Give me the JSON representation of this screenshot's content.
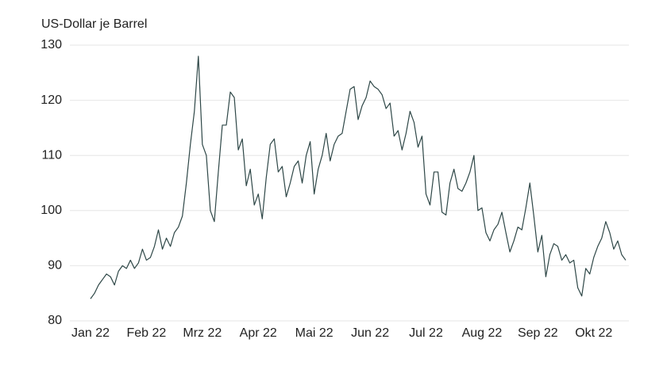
{
  "chart_data": {
    "type": "line",
    "title": "US-Dollar je Barrel",
    "categories": [
      "Jan 22",
      null,
      null,
      null,
      null,
      null,
      null,
      null,
      null,
      null,
      null,
      null,
      null,
      null,
      "Feb 22",
      null,
      null,
      null,
      null,
      null,
      null,
      null,
      null,
      null,
      null,
      null,
      null,
      null,
      "Mrz 22",
      null,
      null,
      null,
      null,
      null,
      null,
      null,
      null,
      null,
      null,
      null,
      null,
      null,
      "Apr 22",
      null,
      null,
      null,
      null,
      null,
      null,
      null,
      null,
      null,
      null,
      null,
      null,
      null,
      "Mai 22",
      null,
      null,
      null,
      null,
      null,
      null,
      null,
      null,
      null,
      null,
      null,
      null,
      null,
      "Jun 22",
      null,
      null,
      null,
      null,
      null,
      null,
      null,
      null,
      null,
      null,
      null,
      null,
      null,
      "Jul 22",
      null,
      null,
      null,
      null,
      null,
      null,
      null,
      null,
      null,
      null,
      null,
      null,
      null,
      "Aug 22",
      null,
      null,
      null,
      null,
      null,
      null,
      null,
      null,
      null,
      null,
      null,
      null,
      null,
      "Sep 22",
      null,
      null,
      null,
      null,
      null,
      null,
      null,
      null,
      null,
      null,
      null,
      null,
      null,
      "Okt 22",
      null,
      null,
      null,
      null,
      null,
      null,
      null,
      null
    ],
    "values": [
      84,
      85,
      86.5,
      87.5,
      88.5,
      88,
      86.5,
      89,
      90,
      89.5,
      91,
      89.5,
      90.5,
      93,
      91,
      91.5,
      93.5,
      96.5,
      93,
      95,
      93.5,
      96,
      97,
      99,
      105,
      112,
      118,
      128,
      112,
      110,
      100,
      98,
      107,
      115.5,
      115.5,
      121.5,
      120.5,
      111,
      113,
      104.5,
      107.5,
      101,
      103,
      98.5,
      106,
      112,
      113,
      107,
      108,
      102.5,
      105,
      108,
      109,
      105,
      110,
      112.5,
      103,
      107.5,
      110,
      114,
      109,
      112,
      113.5,
      114,
      118,
      122,
      122.5,
      116.5,
      119,
      120.5,
      123.5,
      122.5,
      122,
      121,
      118.5,
      119.5,
      113.5,
      114.5,
      111,
      114,
      118,
      116,
      111.5,
      113.5,
      103,
      101,
      107,
      107,
      99.7,
      99.2,
      105,
      107.5,
      104,
      103.5,
      105,
      107,
      110,
      100,
      100.5,
      96,
      94.5,
      96.5,
      97.5,
      99.7,
      96,
      92.5,
      94.5,
      97,
      96.5,
      100.5,
      105,
      99,
      92.5,
      95.5,
      88,
      92,
      94,
      93.5,
      91,
      92,
      90.5,
      91,
      86,
      84.5,
      89.5,
      88.5,
      91.5,
      93.5,
      95,
      98,
      96,
      93,
      94.5,
      92,
      91
    ],
    "color": "#2e4747",
    "ylim": [
      80,
      130
    ],
    "yticks": [
      80,
      90,
      100,
      110,
      120,
      130
    ],
    "grid": true
  }
}
